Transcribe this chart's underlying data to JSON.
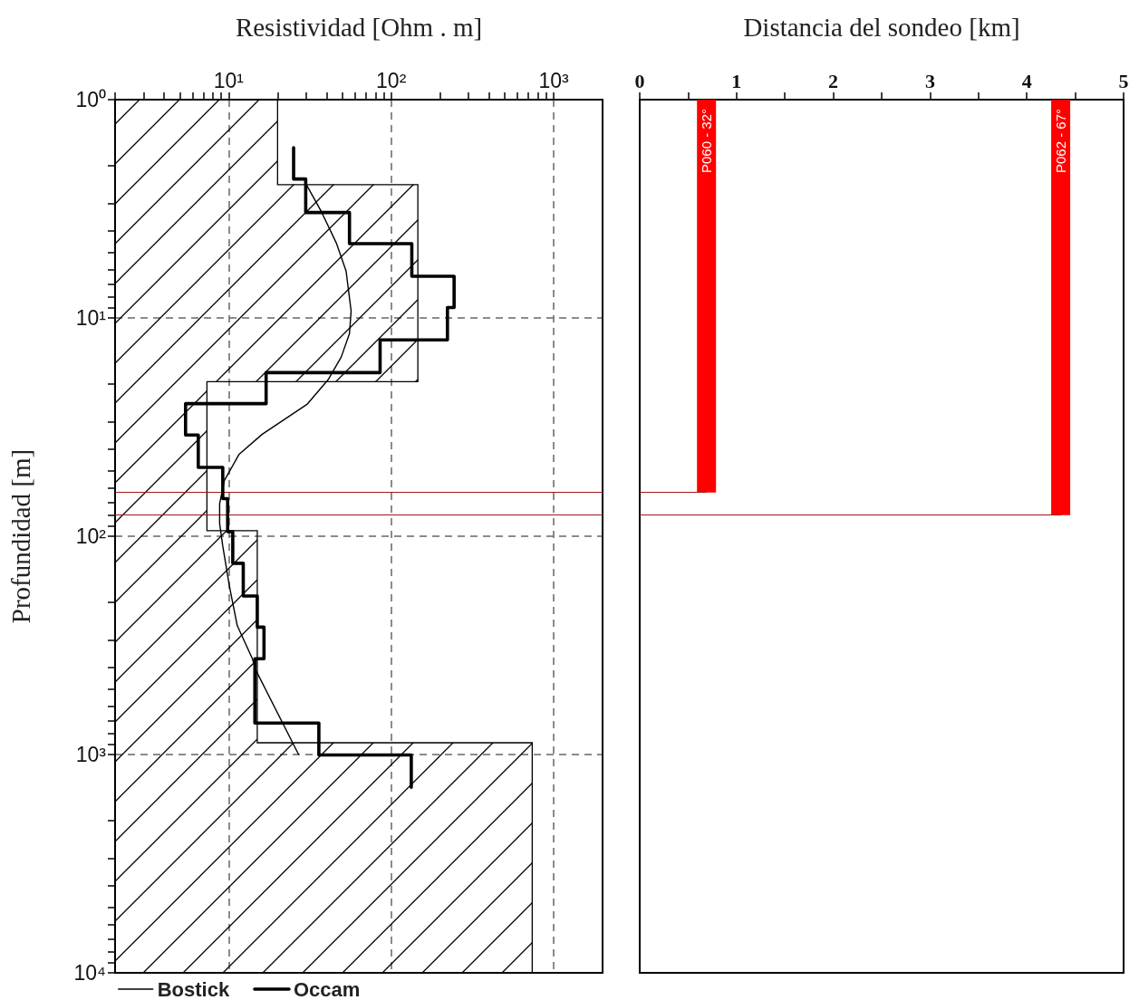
{
  "chart_data": [
    {
      "type": "line",
      "xlabel": "Resistividad [Ohm . m]",
      "ylabel": "Profundidad [m]",
      "log": "xy",
      "xlim": [
        2,
        2000
      ],
      "ylim": [
        10000,
        1
      ],
      "xticks": [
        {
          "value": 2,
          "label": null
        },
        {
          "value": 3,
          "label": null
        },
        {
          "value": 4,
          "label": null
        },
        {
          "value": 5,
          "label": null
        },
        {
          "value": 6,
          "label": null
        },
        {
          "value": 7,
          "label": null
        },
        {
          "value": 8,
          "label": null
        },
        {
          "value": 9,
          "label": null
        },
        {
          "value": 10,
          "label": "10¹"
        },
        {
          "value": 20,
          "label": null
        },
        {
          "value": 30,
          "label": null
        },
        {
          "value": 40,
          "label": null
        },
        {
          "value": 50,
          "label": null
        },
        {
          "value": 60,
          "label": null
        },
        {
          "value": 70,
          "label": null
        },
        {
          "value": 80,
          "label": null
        },
        {
          "value": 90,
          "label": null
        },
        {
          "value": 100,
          "label": "10²"
        },
        {
          "value": 200,
          "label": null
        },
        {
          "value": 300,
          "label": null
        },
        {
          "value": 400,
          "label": null
        },
        {
          "value": 500,
          "label": null
        },
        {
          "value": 600,
          "label": null
        },
        {
          "value": 700,
          "label": null
        },
        {
          "value": 800,
          "label": null
        },
        {
          "value": 900,
          "label": null
        },
        {
          "value": 1000,
          "label": "10³"
        }
      ],
      "yticks": [
        {
          "value": 1,
          "label": "10⁰"
        },
        {
          "value": 2,
          "label": null
        },
        {
          "value": 3,
          "label": null
        },
        {
          "value": 4,
          "label": null
        },
        {
          "value": 5,
          "label": null
        },
        {
          "value": 6,
          "label": null
        },
        {
          "value": 7,
          "label": null
        },
        {
          "value": 8,
          "label": null
        },
        {
          "value": 9,
          "label": null
        },
        {
          "value": 10,
          "label": "10¹"
        },
        {
          "value": 20,
          "label": null
        },
        {
          "value": 30,
          "label": null
        },
        {
          "value": 40,
          "label": null
        },
        {
          "value": 50,
          "label": null
        },
        {
          "value": 60,
          "label": null
        },
        {
          "value": 70,
          "label": null
        },
        {
          "value": 80,
          "label": null
        },
        {
          "value": 90,
          "label": null
        },
        {
          "value": 100,
          "label": "10²"
        },
        {
          "value": 200,
          "label": null
        },
        {
          "value": 300,
          "label": null
        },
        {
          "value": 400,
          "label": null
        },
        {
          "value": 500,
          "label": null
        },
        {
          "value": 600,
          "label": null
        },
        {
          "value": 700,
          "label": null
        },
        {
          "value": 800,
          "label": null
        },
        {
          "value": 900,
          "label": null
        },
        {
          "value": 1000,
          "label": "10³"
        },
        {
          "value": 2000,
          "label": null
        },
        {
          "value": 3000,
          "label": null
        },
        {
          "value": 4000,
          "label": null
        },
        {
          "value": 5000,
          "label": null
        },
        {
          "value": 6000,
          "label": null
        },
        {
          "value": 7000,
          "label": null
        },
        {
          "value": 8000,
          "label": null
        },
        {
          "value": 9000,
          "label": null
        },
        {
          "value": 10000,
          "label": "10⁴"
        }
      ],
      "grid": true,
      "legend": "bottom left",
      "marker": "none",
      "line_style": "solid",
      "ref_lines": [
        {
          "axis": "y",
          "value": 63,
          "color": "#a01818"
        },
        {
          "axis": "y",
          "value": 80,
          "color": "#a01818"
        }
      ],
      "series": [
        {
          "type": "area",
          "color": "#000000",
          "x": [
            2,
            20,
            20,
            146,
            146,
            7.35,
            7.35,
            15,
            15,
            738,
            738,
            2
          ],
          "values": [
            1,
            1,
            2.45,
            2.45,
            19.6,
            19.6,
            94.4,
            94.4,
            883,
            883,
            10000,
            10000
          ]
        },
        {
          "name": "Bostick",
          "color": "#000000",
          "x": [
            29.5,
            37.2,
            46,
            52.8,
            56.7,
            55.4,
            49.3,
            40.9,
            30.5,
            16.1,
            11.6,
            9.4,
            8.8,
            8.8,
            9.2,
            10.1,
            11.3,
            14,
            14.7,
            26.9
          ],
          "values": [
            2.39,
            3.26,
            4.54,
            6.1,
            9.3,
            11.8,
            15.1,
            19.2,
            24.8,
            34.1,
            42.1,
            55.6,
            71,
            87.4,
            111,
            169,
            257,
            364,
            411,
            998
          ]
        },
        {
          "name": "Occam",
          "color": "#000000",
          "x": [
            25.1,
            25.1,
            29.8,
            29.8,
            55.4,
            55.4,
            134,
            134,
            244,
            244,
            222,
            222,
            85.5,
            85.5,
            17,
            17,
            5.43,
            5.43,
            6.5,
            6.5,
            9.2,
            9.2,
            9.86,
            9.86,
            10.6,
            10.6,
            12.3,
            12.3,
            15,
            15,
            16.5,
            16.5,
            14.5,
            14.5,
            35.9,
            35.9,
            133,
            133
          ],
          "values": [
            1.66,
            2.31,
            2.31,
            3.29,
            3.29,
            4.57,
            4.57,
            6.44,
            6.44,
            8.96,
            8.96,
            12.6,
            12.6,
            17.8,
            17.8,
            24.7,
            24.7,
            34.4,
            34.4,
            48.4,
            48.4,
            67.3,
            67.3,
            95.3,
            95.3,
            133,
            133,
            188,
            188,
            261,
            261,
            364,
            364,
            717,
            717,
            1005,
            1005,
            1413
          ]
        }
      ]
    },
    {
      "type": "bar",
      "xlabel": "Distancia del sondeo [km]",
      "log": "y",
      "xlim": [
        0,
        5
      ],
      "ylim": [
        10000,
        1
      ],
      "tick_labels": "x",
      "xticks": [
        0,
        {
          "value": 0.5,
          "label": null
        },
        1,
        {
          "value": 1.5,
          "label": null
        },
        2,
        {
          "value": 2.5,
          "label": null
        },
        3,
        {
          "value": 3.5,
          "label": null
        },
        4,
        {
          "value": 4.5,
          "label": null
        },
        5
      ],
      "ref_lines": [
        {
          "axis": "y",
          "value": 63,
          "color": "#a01818"
        },
        {
          "axis": "y",
          "value": 80,
          "color": "#a01818"
        }
      ],
      "series": [
        {
          "name": "P060 - 32°",
          "color": "#ff0000",
          "x": [
            0.69
          ],
          "values": [
            63
          ]
        },
        {
          "name": "P062 - 67°",
          "color": "#ff0000",
          "x": [
            4.35
          ],
          "values": [
            80
          ]
        }
      ]
    }
  ]
}
